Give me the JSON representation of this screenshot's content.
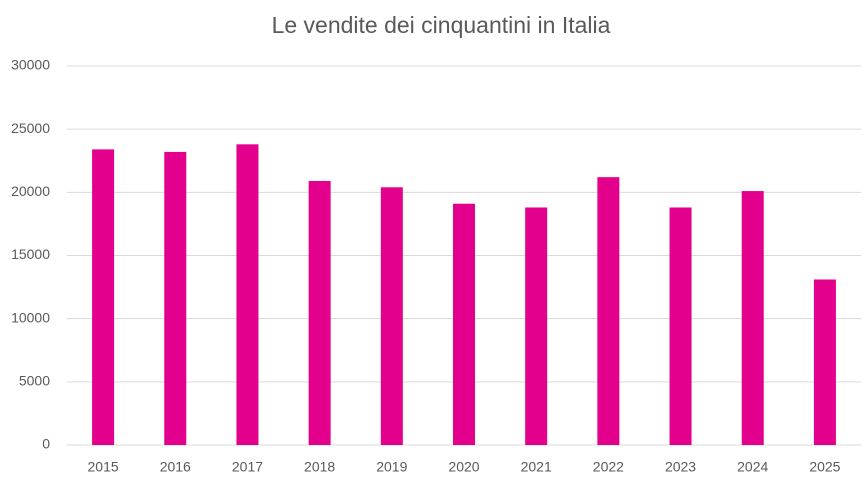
{
  "chart_data": {
    "type": "bar",
    "title": "Le vendite dei cinquantini in Italia",
    "categories": [
      "2015",
      "2016",
      "2017",
      "2018",
      "2019",
      "2020",
      "2021",
      "2022",
      "2023",
      "2024",
      "2025"
    ],
    "values": [
      23400,
      23200,
      23800,
      20900,
      20400,
      19100,
      18800,
      21200,
      18800,
      20100,
      13100
    ],
    "color": "#e3008c",
    "ylim": [
      0,
      30000
    ],
    "yticks": [
      0,
      5000,
      10000,
      15000,
      20000,
      25000,
      30000
    ],
    "grid": true
  }
}
